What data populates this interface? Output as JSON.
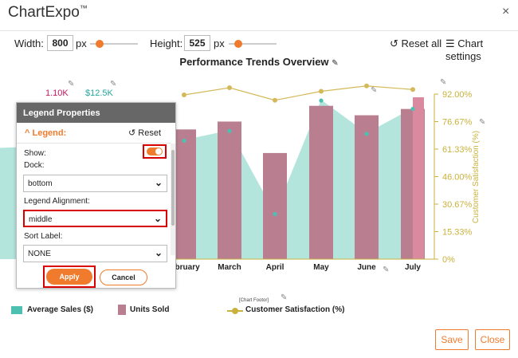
{
  "app": {
    "title": "ChartExpo",
    "trademark": "™",
    "close_glyph": "×"
  },
  "toolbar": {
    "width_label": "Width:",
    "width_value": "800",
    "width_unit": "px",
    "height_label": "Height:",
    "height_value": "525",
    "height_unit": "px",
    "width_slider_level": 0.2,
    "height_slider_level": 0.2,
    "reset_all_label": "Reset all",
    "chart_settings_label": "Chart settings"
  },
  "chart_data": {
    "type": "bar",
    "title": "Performance Trends Overview",
    "categories": [
      "February",
      "March",
      "April",
      "May",
      "June",
      "July"
    ],
    "categories_visible_labels": [
      "ebruary",
      "March",
      "April",
      "May",
      "June",
      "July"
    ],
    "series": [
      {
        "name": "Average Sales ($)",
        "type": "area",
        "values": [
          8900,
          9600,
          3600,
          11800,
          9400,
          11200
        ]
      },
      {
        "name": "Units Sold",
        "type": "bar",
        "values": [
          850,
          900,
          700,
          1000,
          940,
          980
        ]
      },
      {
        "name": "Customer Satisfaction (%)",
        "type": "line",
        "axis": "right",
        "values": [
          88,
          92,
          85,
          90,
          93,
          91
        ]
      }
    ],
    "right_axis": {
      "label": "Customer Satisfaction (%)",
      "ticks": [
        "92.00%",
        "76.67%",
        "61.33%",
        "46.00%",
        "30.67%",
        "15.33%",
        "0%"
      ],
      "range": [
        0,
        92
      ]
    },
    "annotations": {
      "units_label": "1.10K",
      "sales_label": "$12.5K"
    },
    "footer": "[Chart Footor]",
    "legend_position": "bottom",
    "colors": {
      "area": "#b3e5dd",
      "bar": "#b97f90",
      "bar_highlight": "#d98a9e",
      "line": "#d4b95a",
      "dot_teal": "#4dc0b2",
      "axis": "#c9b23c",
      "units_label": "#c2185b",
      "sales_label": "#26a69a"
    }
  },
  "panel": {
    "title": "Legend Properties",
    "section_label": "Legend:",
    "section_collapse_glyph": "^",
    "reset_label": "Reset",
    "show_label": "Show:",
    "show_on": true,
    "dock_label": "Dock:",
    "dock_value": "bottom",
    "alignment_label": "Legend Alignment:",
    "alignment_value": "middle",
    "sort_label": "Sort Label:",
    "sort_value": "NONE",
    "apply_label": "Apply",
    "cancel_label": "Cancel"
  },
  "legend": {
    "items": [
      "Average Sales ($)",
      "Units Sold",
      "Customer Satisfaction (%)"
    ]
  },
  "footer": {
    "save_label": "Save",
    "close_label": "Close"
  }
}
